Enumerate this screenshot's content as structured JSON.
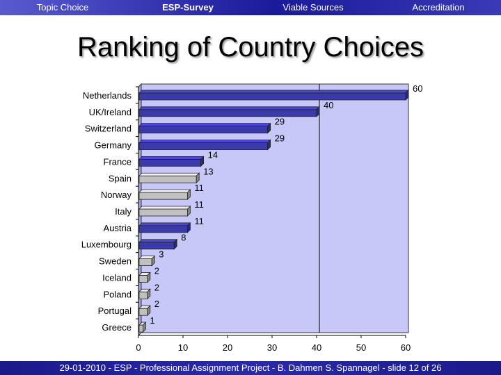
{
  "nav": {
    "items": [
      {
        "label": "Topic Choice"
      },
      {
        "label": "ESP-Survey"
      },
      {
        "label": "Viable Sources"
      },
      {
        "label": "Accreditation"
      }
    ],
    "active": "ESP-Survey"
  },
  "title": "Ranking of Country Choices",
  "footer": "29-01-2010  -  ESP  -  Professional Assignment Project  -  B. Dahmen  S. Spannagel  -  slide 12 of 26",
  "colors": {
    "nav_bg": "#1a1a9a",
    "plot_bg": "#c8c8f8",
    "bar_blue": "#3a3aa8",
    "bar_grey": "#c0c0c0",
    "footer_bg": "#1a1a8a"
  },
  "chart_data": {
    "type": "bar",
    "orientation": "horizontal",
    "categories": [
      "Netherlands",
      "UK/Ireland",
      "Switzerland",
      "Germany",
      "France",
      "Spain",
      "Norway",
      "Italy",
      "Austria",
      "Luxembourg",
      "Sweden",
      "Iceland",
      "Poland",
      "Portugal",
      "Greece"
    ],
    "values": [
      60,
      40,
      29,
      29,
      14,
      13,
      11,
      11,
      11,
      8,
      3,
      2,
      2,
      2,
      1
    ],
    "bar_colors": [
      "blue",
      "blue",
      "blue",
      "blue",
      "blue",
      "grey",
      "grey",
      "grey",
      "blue",
      "blue",
      "grey",
      "grey",
      "grey",
      "grey",
      "grey"
    ],
    "xticks": [
      "0",
      "10",
      "20",
      "30",
      "40",
      "50",
      "60"
    ],
    "xlim": [
      0,
      60
    ],
    "reference_line": 40,
    "title": "",
    "xlabel": "",
    "ylabel": "",
    "grid": false,
    "legend": "none"
  }
}
